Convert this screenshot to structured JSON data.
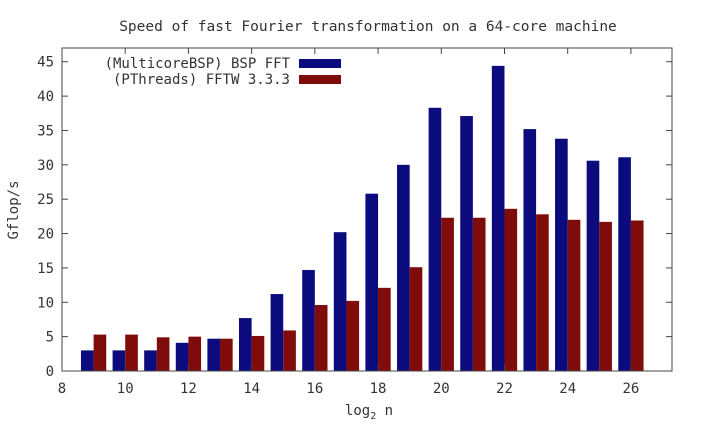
{
  "chart_data": {
    "type": "bar",
    "title": "Speed of fast Fourier transformation on a 64-core machine",
    "xlabel_base": "log",
    "xlabel_sub": "2",
    "xlabel_var": " n",
    "ylabel": "Gflop/s",
    "x": [
      9,
      10,
      11,
      12,
      13,
      14,
      15,
      16,
      17,
      18,
      19,
      20,
      21,
      22,
      23,
      24,
      25,
      26
    ],
    "xlim": [
      8,
      27.3
    ],
    "ylim": [
      0,
      47
    ],
    "x_ticks": [
      8,
      10,
      12,
      14,
      16,
      18,
      20,
      22,
      24,
      26
    ],
    "y_ticks": [
      0,
      5,
      10,
      15,
      20,
      25,
      30,
      35,
      40,
      45
    ],
    "grid": false,
    "legend_position": "top-left",
    "series": [
      {
        "name": "(MulticoreBSP) BSP FFT",
        "color": "#0b0b7e",
        "values": [
          3.0,
          3.0,
          3.0,
          4.1,
          4.7,
          7.7,
          11.2,
          14.7,
          20.2,
          25.8,
          30.0,
          38.3,
          37.1,
          44.4,
          35.2,
          33.8,
          30.6,
          31.1
        ]
      },
      {
        "name": "(PThreads) FFTW 3.3.3",
        "color": "#800b0b",
        "values": [
          5.3,
          5.3,
          4.9,
          5.0,
          4.7,
          5.1,
          5.9,
          9.6,
          10.2,
          12.1,
          15.1,
          22.3,
          22.3,
          23.6,
          22.8,
          22.0,
          21.7,
          21.9
        ]
      }
    ]
  }
}
